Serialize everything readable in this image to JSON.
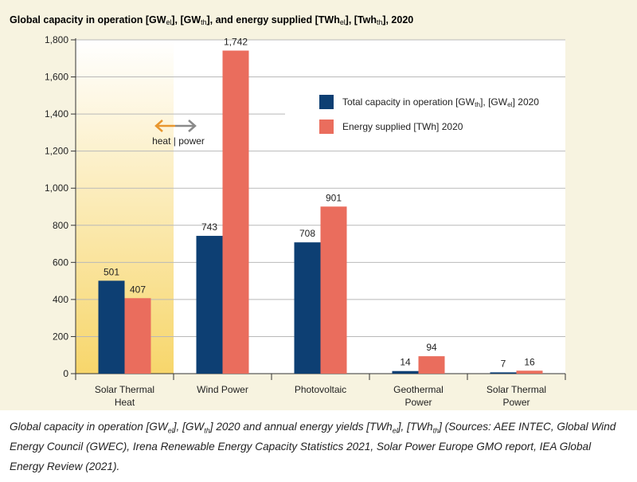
{
  "figure": {
    "title_parts": [
      {
        "t": "Global capacity in operation [GW"
      },
      {
        "t": "el",
        "sub": true
      },
      {
        "t": "], [GW"
      },
      {
        "t": "th",
        "sub": true
      },
      {
        "t": "], and energy supplied [TWh"
      },
      {
        "t": "el",
        "sub": true
      },
      {
        "t": "], [Twh"
      },
      {
        "t": "th",
        "sub": true
      },
      {
        "t": "], 2020"
      }
    ],
    "heat_power_label": "heat | power",
    "caption_parts": [
      {
        "t": "Global capacity in operation [GW"
      },
      {
        "t": "el",
        "sub": true
      },
      {
        "t": "], [GW"
      },
      {
        "t": "th",
        "sub": true
      },
      {
        "t": "] 2020 and annual energy yields [TWh"
      },
      {
        "t": "el",
        "sub": true
      },
      {
        "t": "], [TWh"
      },
      {
        "t": "th",
        "sub": true
      },
      {
        "t": "] (Sources: AEE INTEC, Global Wind Energy Council (GWEC), Irena Renewable Energy Capacity Statistics 2021, Solar Power Europe GMO report, IEA Global Energy Review (2021)."
      }
    ]
  },
  "colors": {
    "capacity": "#0d3f73",
    "energy": "#ea6d5d",
    "background": "#f7f3e0",
    "highlight": "#f7d66b",
    "arrow_heat": "#e8962e",
    "arrow_power": "#8a8a8a",
    "grid": "#b9b9b9"
  },
  "chart_data": {
    "type": "bar",
    "categories": [
      [
        "Solar Thermal",
        "Heat"
      ],
      [
        "Wind Power"
      ],
      [
        "Photovoltaic"
      ],
      [
        "Geothermal",
        "Power"
      ],
      [
        "Solar Thermal",
        "Power"
      ]
    ],
    "series": [
      {
        "name_parts": [
          {
            "t": "Total capacity in operation [GW"
          },
          {
            "t": "th",
            "sub": true
          },
          {
            "t": "], [GW"
          },
          {
            "t": "el",
            "sub": true
          },
          {
            "t": "] 2020"
          }
        ],
        "values": [
          501,
          743,
          708,
          14,
          7
        ],
        "labels": [
          "501",
          "743",
          "708",
          "14",
          "7"
        ]
      },
      {
        "name_parts": [
          {
            "t": "Energy supplied [TWh] 2020"
          }
        ],
        "values": [
          407,
          1742,
          901,
          94,
          16
        ],
        "labels": [
          "407",
          "1,742",
          "901",
          "94",
          "16"
        ]
      }
    ],
    "ylim": [
      0,
      1800
    ],
    "yticks": [
      0,
      200,
      400,
      600,
      800,
      1000,
      1200,
      1400,
      1600,
      1800
    ],
    "ytick_labels": [
      "0",
      "200",
      "400",
      "600",
      "800",
      "1,000",
      "1,200",
      "1,400",
      "1,600",
      "1,800"
    ],
    "grid": true,
    "legend_position": "upper-right",
    "highlight_category": 0
  }
}
